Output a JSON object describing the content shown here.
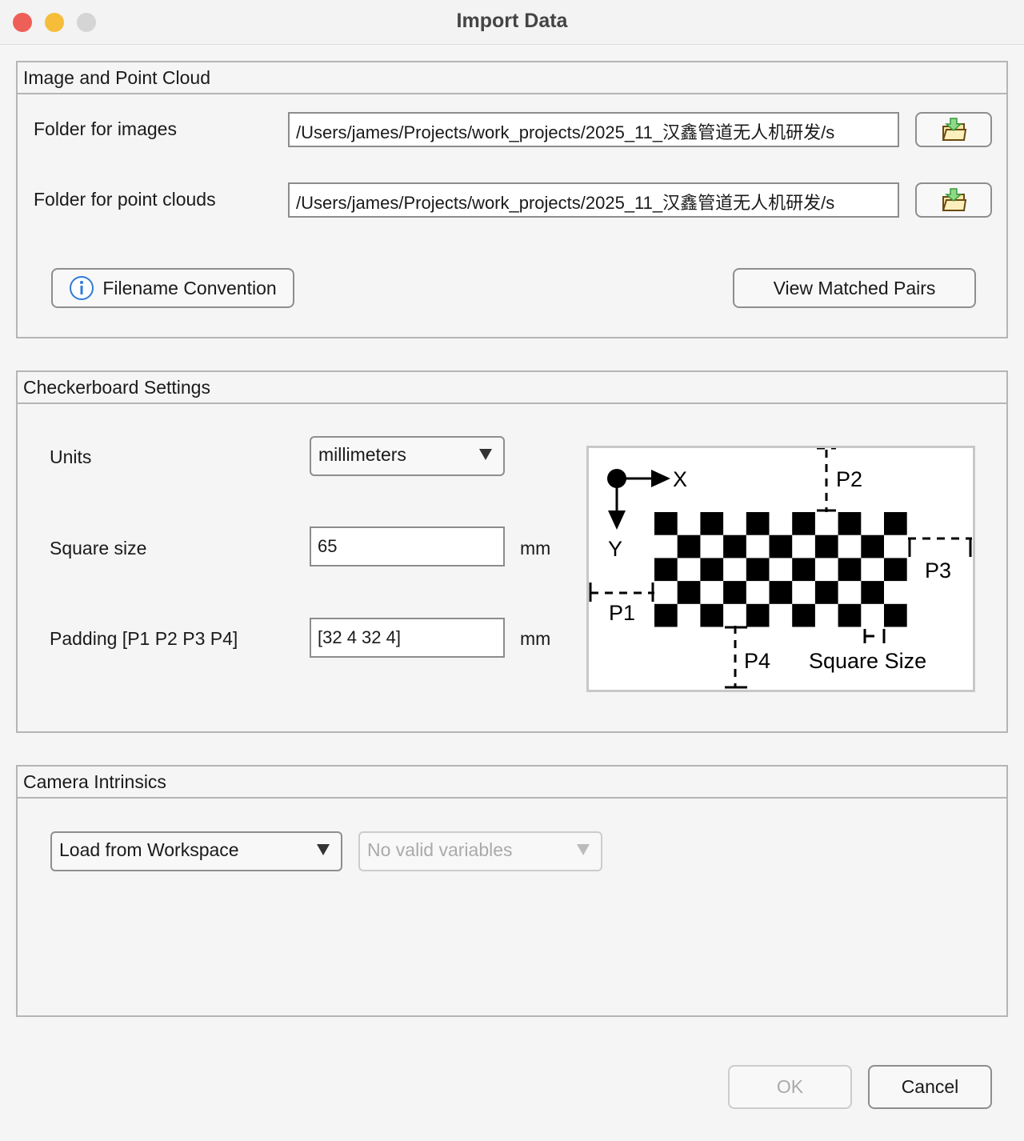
{
  "window": {
    "title": "Import Data"
  },
  "image_panel": {
    "title": "Image and Point Cloud",
    "images_label": "Folder for images",
    "images_value": "/Users/james/Projects/work_projects/2025_11_汉鑫管道无人机研发/s",
    "clouds_label": "Folder for point clouds",
    "clouds_value": "/Users/james/Projects/work_projects/2025_11_汉鑫管道无人机研发/s",
    "filename_btn": "Filename Convention",
    "matched_btn": "View Matched Pairs"
  },
  "checker_panel": {
    "title": "Checkerboard Settings",
    "units_label": "Units",
    "units_value": "millimeters",
    "square_label": "Square size",
    "square_value": "65",
    "square_unit": "mm",
    "padding_label": "Padding [P1 P2 P3 P4]",
    "padding_value": "[32 4 32 4]",
    "padding_unit": "mm",
    "diagram": {
      "x": "X",
      "y": "Y",
      "p1": "P1",
      "p2": "P2",
      "p3": "P3",
      "p4": "P4",
      "square": "Square Size"
    }
  },
  "intrinsics_panel": {
    "title": "Camera Intrinsics",
    "source_value": "Load from Workspace",
    "variable_value": "No valid variables"
  },
  "footer": {
    "ok": "OK",
    "cancel": "Cancel"
  }
}
